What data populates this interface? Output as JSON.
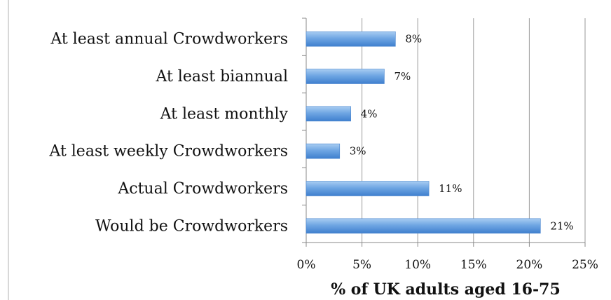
{
  "chart_data": {
    "type": "bar",
    "orientation": "horizontal",
    "categories": [
      "At least annual Crowdworkers",
      "At least biannual",
      "At least monthly",
      "At least weekly Crowdworkers",
      "Actual Crowdworkers",
      "Would be Crowdworkers"
    ],
    "values": [
      8,
      7,
      4,
      3,
      11,
      21
    ],
    "data_labels": [
      "8%",
      "7%",
      "4%",
      "3%",
      "11%",
      "21%"
    ],
    "xlabel": "% of UK adults aged 16-75",
    "ylabel": "",
    "xlim": [
      0,
      25
    ],
    "xticks": [
      0,
      5,
      10,
      15,
      20,
      25
    ],
    "xtick_labels": [
      "0%",
      "5%",
      "10%",
      "15%",
      "20%",
      "25%"
    ],
    "grid": "vertical",
    "legend": "none",
    "bar_color": "#5b9bd5"
  }
}
